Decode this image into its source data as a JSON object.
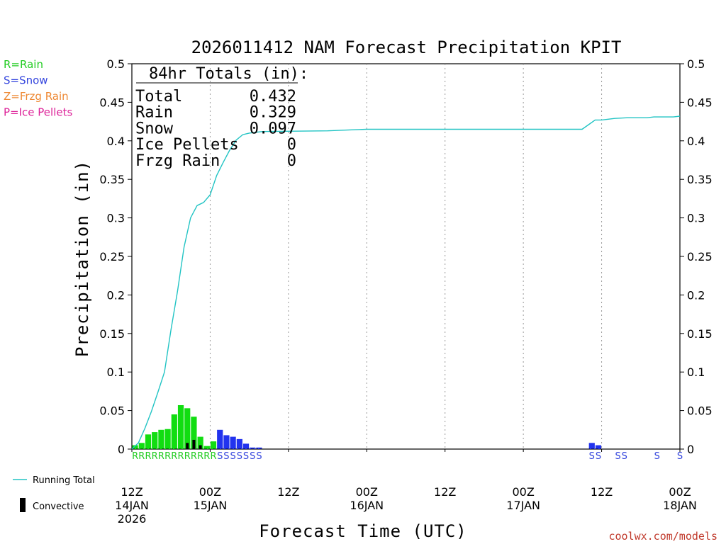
{
  "chart_data": {
    "type": "bar",
    "title": "2026011412 NAM Forecast Precipitation KPIT",
    "ylabel": "Precipitation (in)",
    "xlabel": "Forecast Time (UTC)",
    "ylim": [
      0,
      0.5
    ],
    "xlim_hours": [
      0,
      84
    ],
    "y_ticks": [
      "0",
      "0.05",
      "0.1",
      "0.15",
      "0.2",
      "0.25",
      "0.3",
      "0.35",
      "0.4",
      "0.45",
      "0.5"
    ],
    "y_tick_values": [
      0,
      0.05,
      0.1,
      0.15,
      0.2,
      0.25,
      0.3,
      0.35,
      0.4,
      0.45,
      0.5
    ],
    "x_ticks": [
      {
        "hour": 0,
        "label": "12Z",
        "date": "14JAN",
        "year": "2026"
      },
      {
        "hour": 12,
        "label": "00Z",
        "date": "15JAN"
      },
      {
        "hour": 24,
        "label": "12Z"
      },
      {
        "hour": 36,
        "label": "00Z",
        "date": "16JAN"
      },
      {
        "hour": 48,
        "label": "12Z"
      },
      {
        "hour": 60,
        "label": "00Z",
        "date": "17JAN"
      },
      {
        "hour": 72,
        "label": "12Z"
      },
      {
        "hour": 84,
        "label": "00Z",
        "date": "18JAN"
      }
    ],
    "hourly_precip": [
      {
        "hour": 0,
        "value": 0.005,
        "type": "R"
      },
      {
        "hour": 1,
        "value": 0.008,
        "type": "R"
      },
      {
        "hour": 2,
        "value": 0.019,
        "type": "R"
      },
      {
        "hour": 3,
        "value": 0.022,
        "type": "R"
      },
      {
        "hour": 4,
        "value": 0.025,
        "type": "R"
      },
      {
        "hour": 5,
        "value": 0.026,
        "type": "R"
      },
      {
        "hour": 6,
        "value": 0.045,
        "type": "R"
      },
      {
        "hour": 7,
        "value": 0.057,
        "type": "R"
      },
      {
        "hour": 8,
        "value": 0.053,
        "type": "R"
      },
      {
        "hour": 9,
        "value": 0.042,
        "type": "R"
      },
      {
        "hour": 10,
        "value": 0.016,
        "type": "R"
      },
      {
        "hour": 11,
        "value": 0.004,
        "type": "R"
      },
      {
        "hour": 12,
        "value": 0.01,
        "type": "R"
      },
      {
        "hour": 13,
        "value": 0.025,
        "type": "S"
      },
      {
        "hour": 14,
        "value": 0.018,
        "type": "S"
      },
      {
        "hour": 15,
        "value": 0.016,
        "type": "S"
      },
      {
        "hour": 16,
        "value": 0.013,
        "type": "S"
      },
      {
        "hour": 17,
        "value": 0.007,
        "type": "S"
      },
      {
        "hour": 18,
        "value": 0.002,
        "type": "S"
      },
      {
        "hour": 19,
        "value": 0.002,
        "type": "S"
      },
      {
        "hour": 70,
        "value": 0.008,
        "type": "S"
      },
      {
        "hour": 71,
        "value": 0.005,
        "type": "S"
      }
    ],
    "convective": [
      {
        "hour": 8,
        "value": 0.008
      },
      {
        "hour": 9,
        "value": 0.012
      },
      {
        "hour": 10,
        "value": 0.005
      }
    ],
    "running_total": [
      {
        "hour": 0,
        "value": 0.0
      },
      {
        "hour": 1,
        "value": 0.008
      },
      {
        "hour": 2,
        "value": 0.027
      },
      {
        "hour": 3,
        "value": 0.049
      },
      {
        "hour": 4,
        "value": 0.074
      },
      {
        "hour": 5,
        "value": 0.1
      },
      {
        "hour": 6,
        "value": 0.155
      },
      {
        "hour": 7,
        "value": 0.205
      },
      {
        "hour": 8,
        "value": 0.262
      },
      {
        "hour": 9,
        "value": 0.3
      },
      {
        "hour": 10,
        "value": 0.316
      },
      {
        "hour": 11,
        "value": 0.32
      },
      {
        "hour": 12,
        "value": 0.33
      },
      {
        "hour": 13,
        "value": 0.355
      },
      {
        "hour": 14,
        "value": 0.372
      },
      {
        "hour": 15,
        "value": 0.388
      },
      {
        "hour": 16,
        "value": 0.401
      },
      {
        "hour": 17,
        "value": 0.408
      },
      {
        "hour": 18,
        "value": 0.41
      },
      {
        "hour": 19,
        "value": 0.411
      },
      {
        "hour": 20,
        "value": 0.412
      },
      {
        "hour": 30,
        "value": 0.413
      },
      {
        "hour": 33,
        "value": 0.414
      },
      {
        "hour": 36,
        "value": 0.415
      },
      {
        "hour": 69,
        "value": 0.415
      },
      {
        "hour": 70,
        "value": 0.421
      },
      {
        "hour": 71,
        "value": 0.427
      },
      {
        "hour": 72,
        "value": 0.427
      },
      {
        "hour": 73,
        "value": 0.428
      },
      {
        "hour": 74,
        "value": 0.429
      },
      {
        "hour": 76,
        "value": 0.43
      },
      {
        "hour": 79,
        "value": 0.43
      },
      {
        "hour": 80,
        "value": 0.431
      },
      {
        "hour": 83,
        "value": 0.431
      },
      {
        "hour": 84,
        "value": 0.432
      }
    ],
    "ptype_labels": [
      {
        "hour": 0,
        "label": "R"
      },
      {
        "hour": 1,
        "label": "R"
      },
      {
        "hour": 2,
        "label": "R"
      },
      {
        "hour": 3,
        "label": "R"
      },
      {
        "hour": 4,
        "label": "R"
      },
      {
        "hour": 5,
        "label": "R"
      },
      {
        "hour": 6,
        "label": "R"
      },
      {
        "hour": 7,
        "label": "R"
      },
      {
        "hour": 8,
        "label": "R"
      },
      {
        "hour": 9,
        "label": "R"
      },
      {
        "hour": 10,
        "label": "R"
      },
      {
        "hour": 11,
        "label": "R"
      },
      {
        "hour": 12,
        "label": "R"
      },
      {
        "hour": 13,
        "label": "S"
      },
      {
        "hour": 14,
        "label": "S"
      },
      {
        "hour": 15,
        "label": "S"
      },
      {
        "hour": 16,
        "label": "S"
      },
      {
        "hour": 17,
        "label": "S"
      },
      {
        "hour": 18,
        "label": "S"
      },
      {
        "hour": 19,
        "label": "S"
      },
      {
        "hour": 70,
        "label": "S"
      },
      {
        "hour": 71,
        "label": "S"
      },
      {
        "hour": 74,
        "label": "S"
      },
      {
        "hour": 75,
        "label": "S"
      },
      {
        "hour": 80,
        "label": "S"
      },
      {
        "hour": 84,
        "label": "S"
      }
    ],
    "totals": {
      "header": "84hr Totals (in):",
      "rows": [
        {
          "label": "Total",
          "value": "0.432"
        },
        {
          "label": "Rain",
          "value": "0.329"
        },
        {
          "label": "Snow",
          "value": "0.097"
        },
        {
          "label": "Ice Pellets",
          "value": "0"
        },
        {
          "label": "Frzg Rain",
          "value": "0"
        }
      ]
    },
    "type_legend": [
      {
        "text": "R=Rain",
        "color": "#22cc22"
      },
      {
        "text": "S=Snow",
        "color": "#3344dd"
      },
      {
        "text": "Z=Frzg Rain",
        "color": "#ee8833"
      },
      {
        "text": "P=Ice Pellets",
        "color": "#dd2299"
      }
    ],
    "series_legend": {
      "running_total": "Running Total",
      "convective": "Convective"
    },
    "colors": {
      "rain": "#11dd11",
      "snow": "#2233ee",
      "convective": "#000000",
      "running_total": "#22c4c4",
      "grid": "#999999"
    },
    "credit": "coolwx.com/models"
  }
}
